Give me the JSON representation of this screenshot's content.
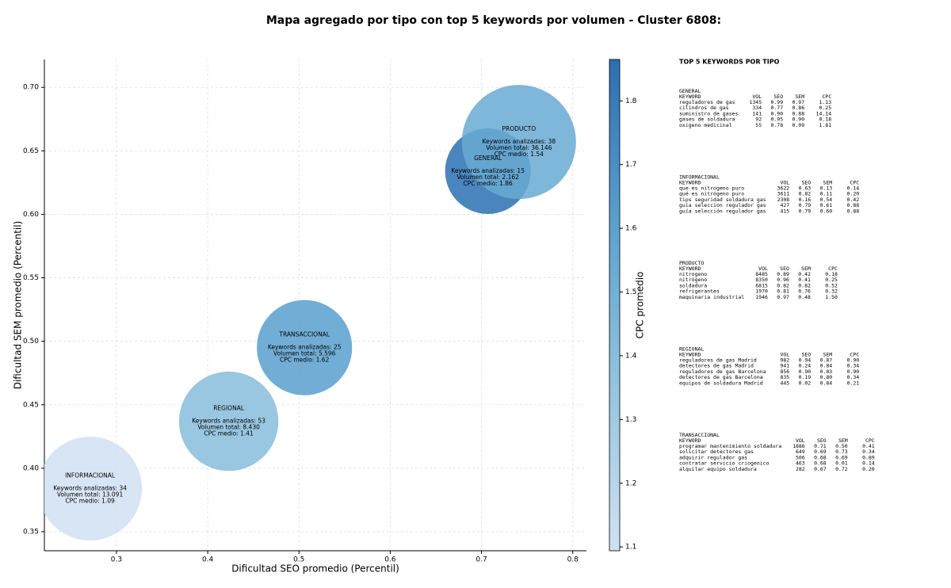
{
  "chart_data": {
    "type": "bubble",
    "title": "Mapa agregado por tipo con top 5 keywords por volumen - Cluster 6808:",
    "xlabel": "Dificultad SEO promedio (Percentil)",
    "ylabel": "Dificultad SEM promedio (Percentil)",
    "colorbar_label": "CPC promedio",
    "xlim": [
      0.221,
      0.815
    ],
    "ylim": [
      0.335,
      0.722
    ],
    "xticks": [
      {
        "value": 0.3,
        "label": "0.3"
      },
      {
        "value": 0.4,
        "label": "0.4"
      },
      {
        "value": 0.5,
        "label": "0.5"
      },
      {
        "value": 0.6,
        "label": "0.6"
      },
      {
        "value": 0.7,
        "label": "0.7"
      },
      {
        "value": 0.8,
        "label": "0.8"
      }
    ],
    "yticks": [
      {
        "value": 0.35,
        "label": "0.35"
      },
      {
        "value": 0.4,
        "label": "0.40"
      },
      {
        "value": 0.45,
        "label": "0.45"
      },
      {
        "value": 0.5,
        "label": "0.50"
      },
      {
        "value": 0.55,
        "label": "0.55"
      },
      {
        "value": 0.6,
        "label": "0.60"
      },
      {
        "value": 0.65,
        "label": "0.65"
      },
      {
        "value": 0.7,
        "label": "0.70"
      }
    ],
    "clim": [
      1.094,
      1.865
    ],
    "cticks": [
      1.1,
      1.2,
      1.3,
      1.4,
      1.5,
      1.6,
      1.7,
      1.8
    ],
    "colormap": [
      "#d0e1f2",
      "#94c4df",
      "#5aa1cf",
      "#2b6fb2"
    ],
    "grid": true,
    "bubbles": [
      {
        "name": "INFORMACIONAL",
        "x": 0.271,
        "y": 0.384,
        "volume": 13091,
        "cpc": 1.09,
        "keywords": 34,
        "label": [
          "Keywords analizadas: 34",
          "Volumen total: 13.091",
          "CPC medio: 1.09"
        ]
      },
      {
        "name": "REGIONAL",
        "x": 0.423,
        "y": 0.437,
        "volume": 8430,
        "cpc": 1.41,
        "keywords": 53,
        "label": [
          "Keywords analizadas: 53",
          "Volumen total: 8.430",
          "CPC medio: 1.41"
        ]
      },
      {
        "name": "TRANSACCIONAL",
        "x": 0.506,
        "y": 0.495,
        "volume": 5596,
        "cpc": 1.62,
        "keywords": 25,
        "label": [
          "Keywords analizadas: 25",
          "Volumen total: 5.596",
          "CPC medio: 1.62"
        ]
      },
      {
        "name": "GENERAL",
        "x": 0.707,
        "y": 0.634,
        "volume": 2162,
        "cpc": 1.86,
        "keywords": 15,
        "label": [
          "Keywords analizadas: 15",
          "Volumen total: 2.162",
          "CPC medio: 1.86"
        ]
      },
      {
        "name": "PRODUCTO",
        "x": 0.741,
        "y": 0.657,
        "volume": 36146,
        "cpc": 1.54,
        "keywords": 38,
        "label": [
          "Keywords analizadas: 38",
          "Volumen total: 36.146",
          "CPC medio: 1.54"
        ]
      }
    ]
  },
  "panel": {
    "title": "TOP 5 KEYWORDS POR TIPO",
    "header": [
      "KEYWORD",
      "VOL",
      "SEO",
      "SEM",
      "CPC"
    ],
    "groups": [
      {
        "name": "GENERAL",
        "rows": [
          [
            "reguladores de gas",
            "1345",
            "0.99",
            "0.97",
            "1.13"
          ],
          [
            "cilindros de gas",
            "334",
            "0.77",
            "0.86",
            "0.25"
          ],
          [
            "suministro de gases",
            "141",
            "0.90",
            "0.88",
            "14.14"
          ],
          [
            "gases de soldadura",
            "92",
            "0.95",
            "0.90",
            "0.18"
          ],
          [
            "oxigeno medicinal",
            "55",
            "0.78",
            "0.09",
            "1.81"
          ]
        ]
      },
      {
        "name": "INFORMACIONAL",
        "rows": [
          [
            "que es nitrogeno puro",
            "3622",
            "0.63",
            "0.13",
            "0.14"
          ],
          [
            "qué es nitrógeno puro",
            "3611",
            "0.82",
            "0.11",
            "0.20"
          ],
          [
            "tips seguridad soldadura gas",
            "2308",
            "0.16",
            "0.54",
            "0.42"
          ],
          [
            "guia seleccion regulador gas",
            "427",
            "0.79",
            "0.61",
            "0.88"
          ],
          [
            "guía selección regulador gas",
            "415",
            "0.79",
            "0.60",
            "0.88"
          ]
        ]
      },
      {
        "name": "PRODUCTO",
        "rows": [
          [
            "nitrogeno",
            "8485",
            "0.89",
            "0.42",
            "0.18"
          ],
          [
            "nitrógeno",
            "8350",
            "0.96",
            "0.41",
            "0.25"
          ],
          [
            "soldadura",
            "6815",
            "0.82",
            "0.82",
            "0.52"
          ],
          [
            "refrigerantes",
            "1970",
            "0.81",
            "0.76",
            "0.32"
          ],
          [
            "maquinaria industrial",
            "1946",
            "0.97",
            "0.48",
            "1.50"
          ]
        ]
      },
      {
        "name": "REGIONAL",
        "rows": [
          [
            "reguladores de gas Madrid",
            "982",
            "0.94",
            "0.87",
            "0.90"
          ],
          [
            "detectores de gas Madrid",
            "941",
            "0.24",
            "0.84",
            "0.34"
          ],
          [
            "reguladores de gas Barcelona",
            "856",
            "0.90",
            "0.83",
            "0.90"
          ],
          [
            "detectores de gas Barcelona",
            "835",
            "0.19",
            "0.80",
            "0.34"
          ],
          [
            "equipos de soldadura Madrid",
            "445",
            "0.02",
            "0.84",
            "0.21"
          ]
        ]
      },
      {
        "name": "TRANSACCIONAL",
        "rows": [
          [
            "programar mantenimiento soldadura",
            "1886",
            "0.71",
            "0.50",
            "0.41"
          ],
          [
            "solicitar detectores gas",
            "649",
            "0.69",
            "0.73",
            "0.34"
          ],
          [
            "adquirir regulador gas",
            "506",
            "0.68",
            "0.69",
            "0.89"
          ],
          [
            "contratar servicio criogenico",
            "463",
            "0.68",
            "0.01",
            "0.14"
          ],
          [
            "alquilar equipo soldadura",
            "282",
            "0.67",
            "0.72",
            "0.20"
          ]
        ]
      }
    ]
  }
}
